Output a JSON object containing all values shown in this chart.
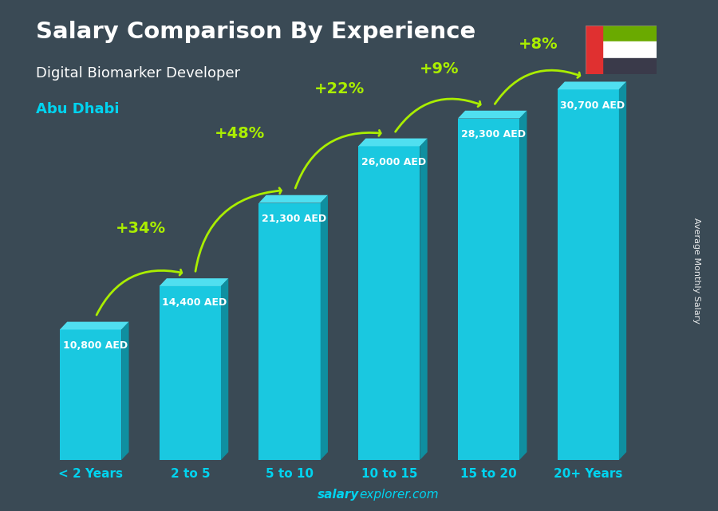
{
  "title": "Salary Comparison By Experience",
  "subtitle": "Digital Biomarker Developer",
  "city": "Abu Dhabi",
  "categories": [
    "< 2 Years",
    "2 to 5",
    "5 to 10",
    "10 to 15",
    "15 to 20",
    "20+ Years"
  ],
  "values": [
    10800,
    14400,
    21300,
    26000,
    28300,
    30700
  ],
  "value_labels": [
    "10,800 AED",
    "14,400 AED",
    "21,300 AED",
    "26,000 AED",
    "28,300 AED",
    "30,700 AED"
  ],
  "pct_labels": [
    "+34%",
    "+48%",
    "+22%",
    "+9%",
    "+8%"
  ],
  "color_front": "#1ac8e0",
  "color_top": "#50dff0",
  "color_side": "#0f8fa0",
  "background_color": "#3a4a55",
  "title_color": "#ffffff",
  "subtitle_color": "#ffffff",
  "city_color": "#00d4f0",
  "tick_color": "#00d4f0",
  "value_label_color": "#ffffff",
  "pct_color": "#aaee00",
  "arrow_color": "#aaee00",
  "watermark_bold": "salary",
  "watermark_normal": "explorer.com",
  "watermark_color": "#00d4f0",
  "side_label": "Average Monthly Salary",
  "ylim": [
    0,
    36000
  ],
  "figsize": [
    9.0,
    6.41
  ],
  "dpi": 100
}
